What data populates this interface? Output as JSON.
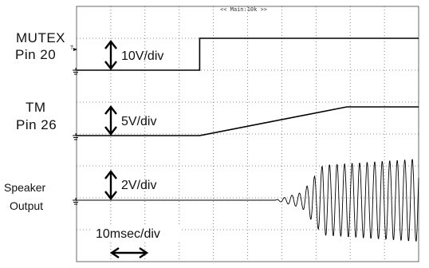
{
  "header": {
    "timebase_label": "<< Main:10k >>"
  },
  "channels": [
    {
      "name_line1": "MUTEX",
      "name_line2": "Pin 20",
      "scale": "10V/div",
      "marker": "T"
    },
    {
      "name_line1": "TM",
      "name_line2": "Pin 26",
      "scale": "5V/div"
    },
    {
      "name_line1": "Speaker",
      "name_line2": "Output",
      "scale": "2V/div"
    }
  ],
  "timebase": {
    "scale": "10msec/div"
  },
  "colors": {
    "background": "#ffffff",
    "trace": "#000000",
    "grid": "#666666"
  },
  "chart_data": {
    "type": "line",
    "title": "",
    "xlabel": "",
    "ylabel": "",
    "grid": true,
    "x_divisions": 10,
    "y_divisions": 8,
    "time_per_div": "10msec/div",
    "series": [
      {
        "name": "MUTEX Pin 20",
        "scale": "10V/div",
        "x_div": [
          0,
          3.6,
          3.6,
          10
        ],
        "y_div_above_ground": [
          0,
          0,
          1.0,
          1.0
        ]
      },
      {
        "name": "TM Pin 26",
        "scale": "5V/div",
        "x_div": [
          0,
          3.6,
          7.9,
          10
        ],
        "y_div_above_ground": [
          0,
          0,
          0.9,
          0.9
        ]
      },
      {
        "name": "Speaker Output",
        "scale": "2V/div",
        "x_div": [
          0,
          5.8,
          6.6,
          7.2,
          10
        ],
        "amplitude_div": [
          0,
          0,
          0.25,
          1.1,
          1.3
        ],
        "oscillation_start_div": 5.8,
        "full_amplitude_div": 7.2
      }
    ]
  }
}
